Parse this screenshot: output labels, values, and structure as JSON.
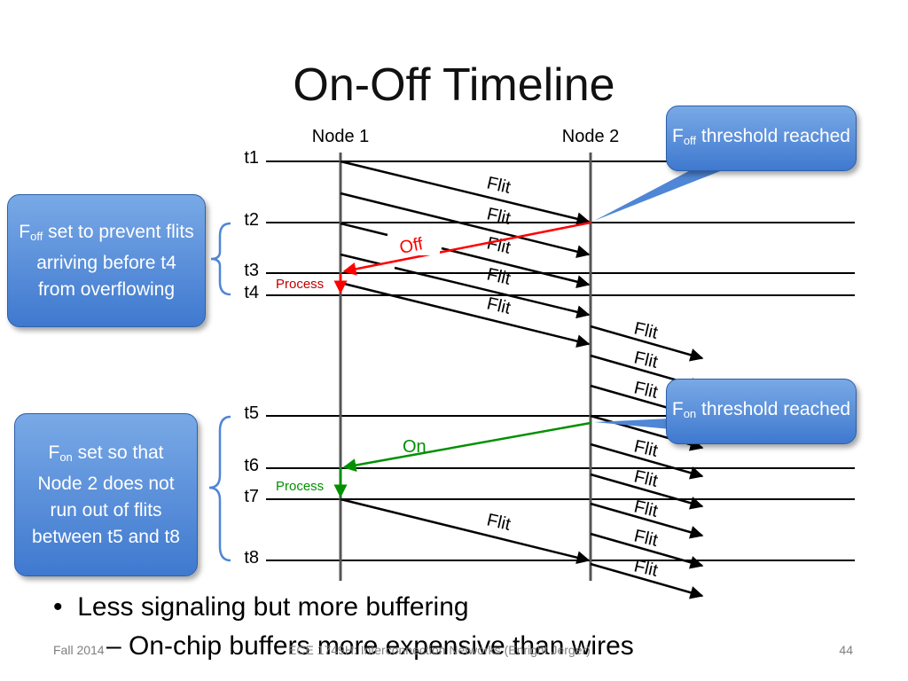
{
  "slide": {
    "title": "On-Off Timeline",
    "bullets": {
      "level1": "Less signaling but more buffering",
      "level2_marker": "–",
      "level2": "On-chip buffers more expensive than wires"
    },
    "footer": {
      "left": "Fall 2014",
      "center": "ECE 1749H: Interconnection Networks (Enright Jerger)",
      "page_number": "44"
    }
  },
  "diagram": {
    "nodes": [
      "Node 1",
      "Node 2"
    ],
    "times": [
      "t1",
      "t2",
      "t3",
      "t4",
      "t5",
      "t6",
      "t7",
      "t8"
    ],
    "messages": {
      "flit": "Flit",
      "off": "Off",
      "on": "On",
      "process": "Process"
    },
    "colors": {
      "off": "#ff0000",
      "on": "#009000",
      "process_label": "#c00000",
      "callout_fill": "#5b8fd9"
    },
    "callouts": {
      "off_threshold": {
        "sub": "off",
        "text": "threshold reached"
      },
      "on_threshold": {
        "sub": "on",
        "text": "threshold reached"
      },
      "off_set": {
        "sub": "off",
        "text": "set to prevent flits arriving before t4 from overflowing"
      },
      "on_set": {
        "sub": "on",
        "text": "set so that Node 2 does not run out of flits between t5 and t8"
      }
    }
  }
}
